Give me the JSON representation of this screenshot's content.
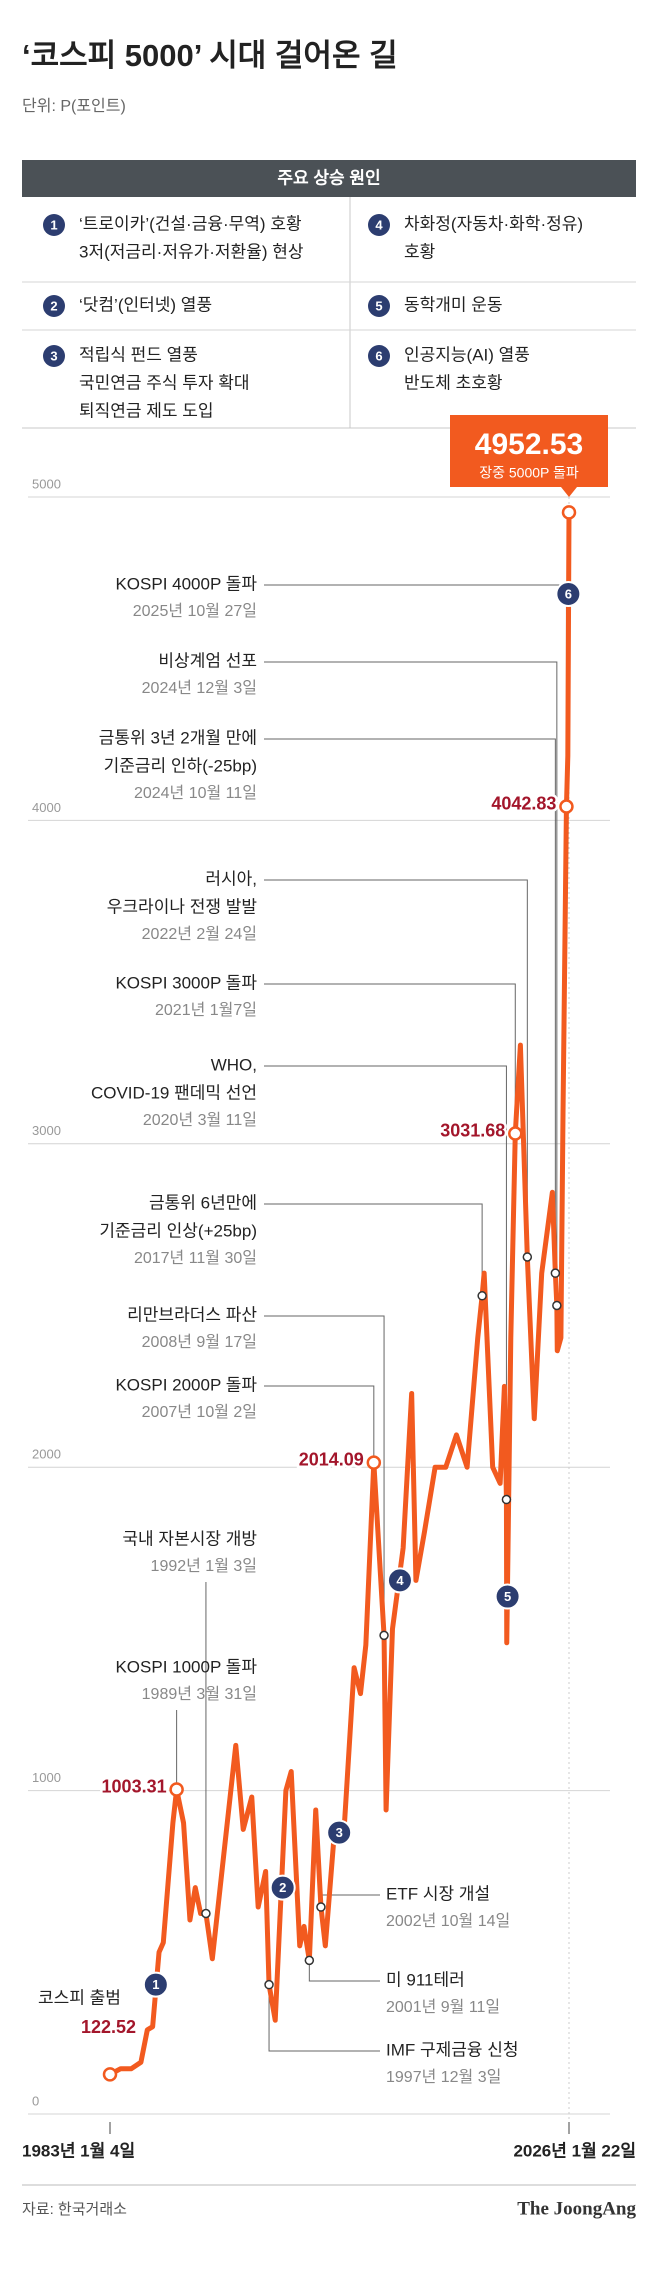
{
  "chart_data": {
    "type": "line",
    "title": "‘코스피 5000’ 시대 걸어온 길",
    "subtitle": "단위: P(포인트)",
    "source": "자료: 한국거래소",
    "brand": "The JoongAng",
    "color": "#f25a1f",
    "grid": true,
    "ylim": [
      0,
      5000
    ],
    "yticks": [
      0,
      1000,
      2000,
      3000,
      4000,
      5000
    ],
    "xlim": [
      1983.0,
      2026.06
    ],
    "xticks": [
      {
        "value": 1983.0,
        "label": "1983년 1월 4일"
      },
      {
        "value": 2026.06,
        "label": "2026년 1월 22일"
      }
    ],
    "x": [
      1983.0,
      1984.0,
      1985.0,
      1985.9,
      1986.5,
      1987.0,
      1987.6,
      1988.0,
      1988.9,
      1989.25,
      1989.9,
      1990.5,
      1991.0,
      1991.5,
      1992.0,
      1992.6,
      1993.5,
      1994.8,
      1995.5,
      1996.3,
      1996.9,
      1997.6,
      1997.92,
      1998.5,
      1999.5,
      2000.0,
      2000.8,
      2001.2,
      2001.7,
      2002.3,
      2002.79,
      2003.2,
      2004.0,
      2005.0,
      2005.9,
      2006.5,
      2007.0,
      2007.75,
      2008.71,
      2008.9,
      2009.5,
      2010.5,
      2011.3,
      2011.7,
      2012.5,
      2013.5,
      2014.5,
      2015.5,
      2016.5,
      2017.5,
      2017.91,
      2018.1,
      2018.9,
      2019.6,
      2020.0,
      2020.19,
      2020.22,
      2020.6,
      2021.02,
      2021.5,
      2022.15,
      2022.8,
      2023.5,
      2024.5,
      2024.78,
      2024.92,
      2024.96,
      2025.3,
      2025.5,
      2025.82,
      2025.95,
      2026.06
    ],
    "values": [
      122.52,
      140,
      140,
      160,
      260,
      270,
      500,
      530,
      900,
      1003.31,
      900,
      600,
      700,
      620,
      620,
      480,
      750,
      1140,
      880,
      980,
      640,
      750,
      400,
      290,
      1000,
      1059,
      520,
      580,
      475,
      940,
      640,
      520,
      850,
      900,
      1380,
      1300,
      1450,
      2014.09,
      1480,
      940,
      1500,
      1750,
      2228,
      1650,
      1800,
      2000,
      2000,
      2100,
      2000,
      2400,
      2530,
      2600,
      2000,
      1950,
      2250,
      1900,
      1457,
      2400,
      3031.68,
      3305,
      2650,
      2150,
      2600,
      2850,
      2600,
      2500,
      2360,
      2400,
      3100,
      4042.83,
      4200,
      4952.53
    ],
    "annotations": [
      {
        "lines": [
          "코스피 출범"
        ],
        "date": "",
        "x": 1983.0,
        "value": 122.52,
        "show_value": true
      },
      {
        "lines": [
          "KOSPI 1000P 돌파"
        ],
        "date": "1989년 3월 31일",
        "x": 1989.25,
        "value": 1003.31,
        "show_value": true
      },
      {
        "lines": [
          "국내 자본시장 개방"
        ],
        "date": "1992년 1월 3일",
        "x": 1992.0,
        "value": 620
      },
      {
        "lines": [
          "IMF 구제금융 신청"
        ],
        "date": "1997년 12월 3일",
        "x": 1997.92,
        "value": 400
      },
      {
        "lines": [
          "미 911테러"
        ],
        "date": "2001년 9월 11일",
        "x": 2001.7,
        "value": 475
      },
      {
        "lines": [
          "ETF 시장 개설"
        ],
        "date": "2002년 10월 14일",
        "x": 2002.79,
        "value": 640
      },
      {
        "lines": [
          "KOSPI 2000P 돌파"
        ],
        "date": "2007년 10월 2일",
        "x": 2007.75,
        "value": 2014.09,
        "show_value": true
      },
      {
        "lines": [
          "리만브라더스 파산"
        ],
        "date": "2008년 9월 17일",
        "x": 2008.71,
        "value": 1480
      },
      {
        "lines": [
          "금통위 6년만에",
          "기준금리 인상(+25bp)"
        ],
        "date": "2017년 11월 30일",
        "x": 2017.91,
        "value": 2530
      },
      {
        "lines": [
          "WHO,",
          "COVID-19 팬데믹 선언"
        ],
        "date": "2020년 3월 11일",
        "x": 2020.19,
        "value": 1900
      },
      {
        "lines": [
          "KOSPI 3000P 돌파"
        ],
        "date": "2021년 1월7일",
        "x": 2021.02,
        "value": 3031.68,
        "show_value": true
      },
      {
        "lines": [
          "러시아,",
          "우크라이나 전쟁 발발"
        ],
        "date": "2022년 2월 24일",
        "x": 2022.15,
        "value": 2650
      },
      {
        "lines": [
          "금통위 3년 2개월 만에",
          "기준금리 인하(-25bp)"
        ],
        "date": "2024년 10월 11일",
        "x": 2024.78,
        "value": 2600
      },
      {
        "lines": [
          "비상계엄 선포"
        ],
        "date": "2024년 12월 3일",
        "x": 2024.92,
        "value": 2500
      },
      {
        "lines": [
          "KOSPI 4000P 돌파"
        ],
        "date": "2025년 10월 27일",
        "x": 2025.82,
        "value": 4042.83,
        "show_value": true
      }
    ],
    "callout": {
      "x": 2026.06,
      "value": 4952.53,
      "text": "장중 5000P 돌파"
    },
    "reason_markers": [
      {
        "label": "1",
        "x": 1987.3,
        "value": 400
      },
      {
        "label": "2",
        "x": 1999.2,
        "value": 700
      },
      {
        "label": "3",
        "x": 2004.5,
        "value": 870
      },
      {
        "label": "4",
        "x": 2010.2,
        "value": 1650
      },
      {
        "label": "5",
        "x": 2020.3,
        "value": 1600
      },
      {
        "label": "6",
        "x": 2026.0,
        "value": 4700
      }
    ]
  },
  "reasons": {
    "title": "주요 상승 원인",
    "items": [
      {
        "number": "1",
        "lines": [
          "‘트로이카’(건설·금융·무역) 호황",
          "3저(저금리·저유가·저환율) 현상"
        ]
      },
      {
        "number": "2",
        "lines": [
          "‘닷컴’(인터넷) 열풍"
        ]
      },
      {
        "number": "3",
        "lines": [
          "적립식 펀드 열풍",
          "국민연금 주식 투자 확대",
          "퇴직연금 제도 도입"
        ]
      },
      {
        "number": "4",
        "lines": [
          "차화정(자동차·화학·정유)",
          "호황"
        ]
      },
      {
        "number": "5",
        "lines": [
          "동학개미 운동"
        ]
      },
      {
        "number": "6",
        "lines": [
          "인공지능(AI) 열풍",
          "반도체 초호황"
        ]
      }
    ]
  }
}
